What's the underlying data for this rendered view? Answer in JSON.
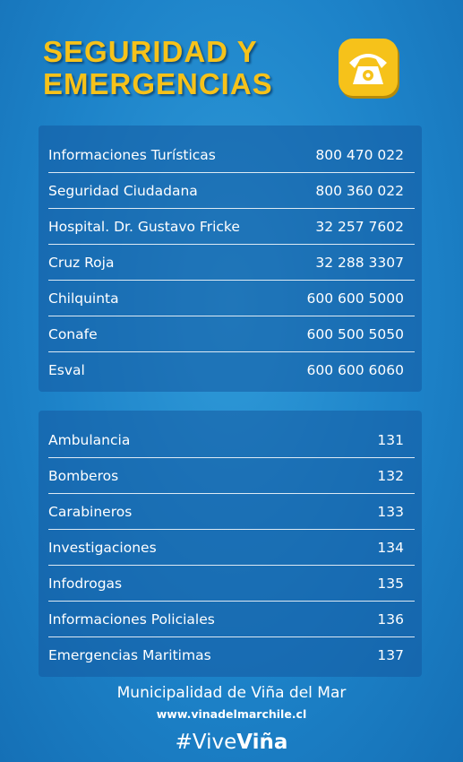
{
  "header": {
    "title_lines": [
      "SEGURIDAD Y",
      "EMERGENCIAS"
    ]
  },
  "table1": {
    "rows": [
      [
        "Informaciones Turísticas",
        "800 470 022"
      ],
      [
        "Seguridad Ciudadana",
        "800 360 022"
      ],
      [
        "Hospital. Dr. Gustavo Fricke",
        "32 257 7602"
      ],
      [
        "Cruz Roja",
        "32 288 3307"
      ],
      [
        "Chilquinta",
        "600 600 5000"
      ],
      [
        "Conafe",
        "600 500 5050"
      ],
      [
        "Esval",
        "600 600 6060"
      ]
    ]
  },
  "table2": {
    "rows": [
      [
        "Ambulancia",
        "131"
      ],
      [
        "Bomberos",
        "132"
      ],
      [
        "Carabineros",
        "133"
      ],
      [
        "Investigaciones",
        "134"
      ],
      [
        "Infodrogas",
        "135"
      ],
      [
        "Informaciones Policiales",
        "136"
      ],
      [
        "Emergencias Maritimas",
        "137"
      ]
    ]
  },
  "footer": {
    "organization": "Municipalidad de Viña del Mar",
    "url": "www.vinadelmarchile.cl",
    "hashtag_prefix": "#Vive",
    "hashtag_bold": "Viña"
  }
}
